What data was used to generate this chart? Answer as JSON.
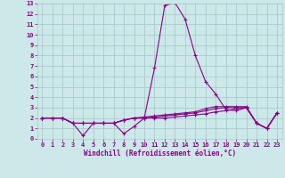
{
  "xlabel": "Windchill (Refroidissement éolien,°C)",
  "background_color": "#cce8e8",
  "grid_color": "#aacccc",
  "line_color": "#880088",
  "xlim": [
    -0.5,
    23.5
  ],
  "ylim": [
    0,
    13
  ],
  "xticks": [
    0,
    1,
    2,
    3,
    4,
    5,
    6,
    7,
    8,
    9,
    10,
    11,
    12,
    13,
    14,
    15,
    16,
    17,
    18,
    19,
    20,
    21,
    22,
    23
  ],
  "yticks": [
    0,
    1,
    2,
    3,
    4,
    5,
    6,
    7,
    8,
    9,
    10,
    11,
    12,
    13
  ],
  "series": [
    [
      2.0,
      2.0,
      2.0,
      1.5,
      0.3,
      1.5,
      1.5,
      1.5,
      0.5,
      1.2,
      2.0,
      6.8,
      12.8,
      13.1,
      11.5,
      8.0,
      5.5,
      4.3,
      2.8,
      2.7,
      3.0,
      1.5,
      1.0,
      2.5
    ],
    [
      2.0,
      2.0,
      2.0,
      1.5,
      1.5,
      1.5,
      1.5,
      1.5,
      1.8,
      2.0,
      2.0,
      2.0,
      2.0,
      2.1,
      2.2,
      2.3,
      2.4,
      2.6,
      2.7,
      2.9,
      3.0,
      1.5,
      1.0,
      2.5
    ],
    [
      2.0,
      2.0,
      2.0,
      1.5,
      1.5,
      1.5,
      1.5,
      1.5,
      1.8,
      2.0,
      2.0,
      2.1,
      2.2,
      2.3,
      2.4,
      2.5,
      2.7,
      2.9,
      3.0,
      3.0,
      3.0,
      1.5,
      1.0,
      2.5
    ],
    [
      2.0,
      2.0,
      2.0,
      1.5,
      1.5,
      1.5,
      1.5,
      1.5,
      1.8,
      2.0,
      2.1,
      2.2,
      2.3,
      2.4,
      2.5,
      2.6,
      2.9,
      3.1,
      3.1,
      3.1,
      3.1,
      1.5,
      1.0,
      2.5
    ]
  ]
}
